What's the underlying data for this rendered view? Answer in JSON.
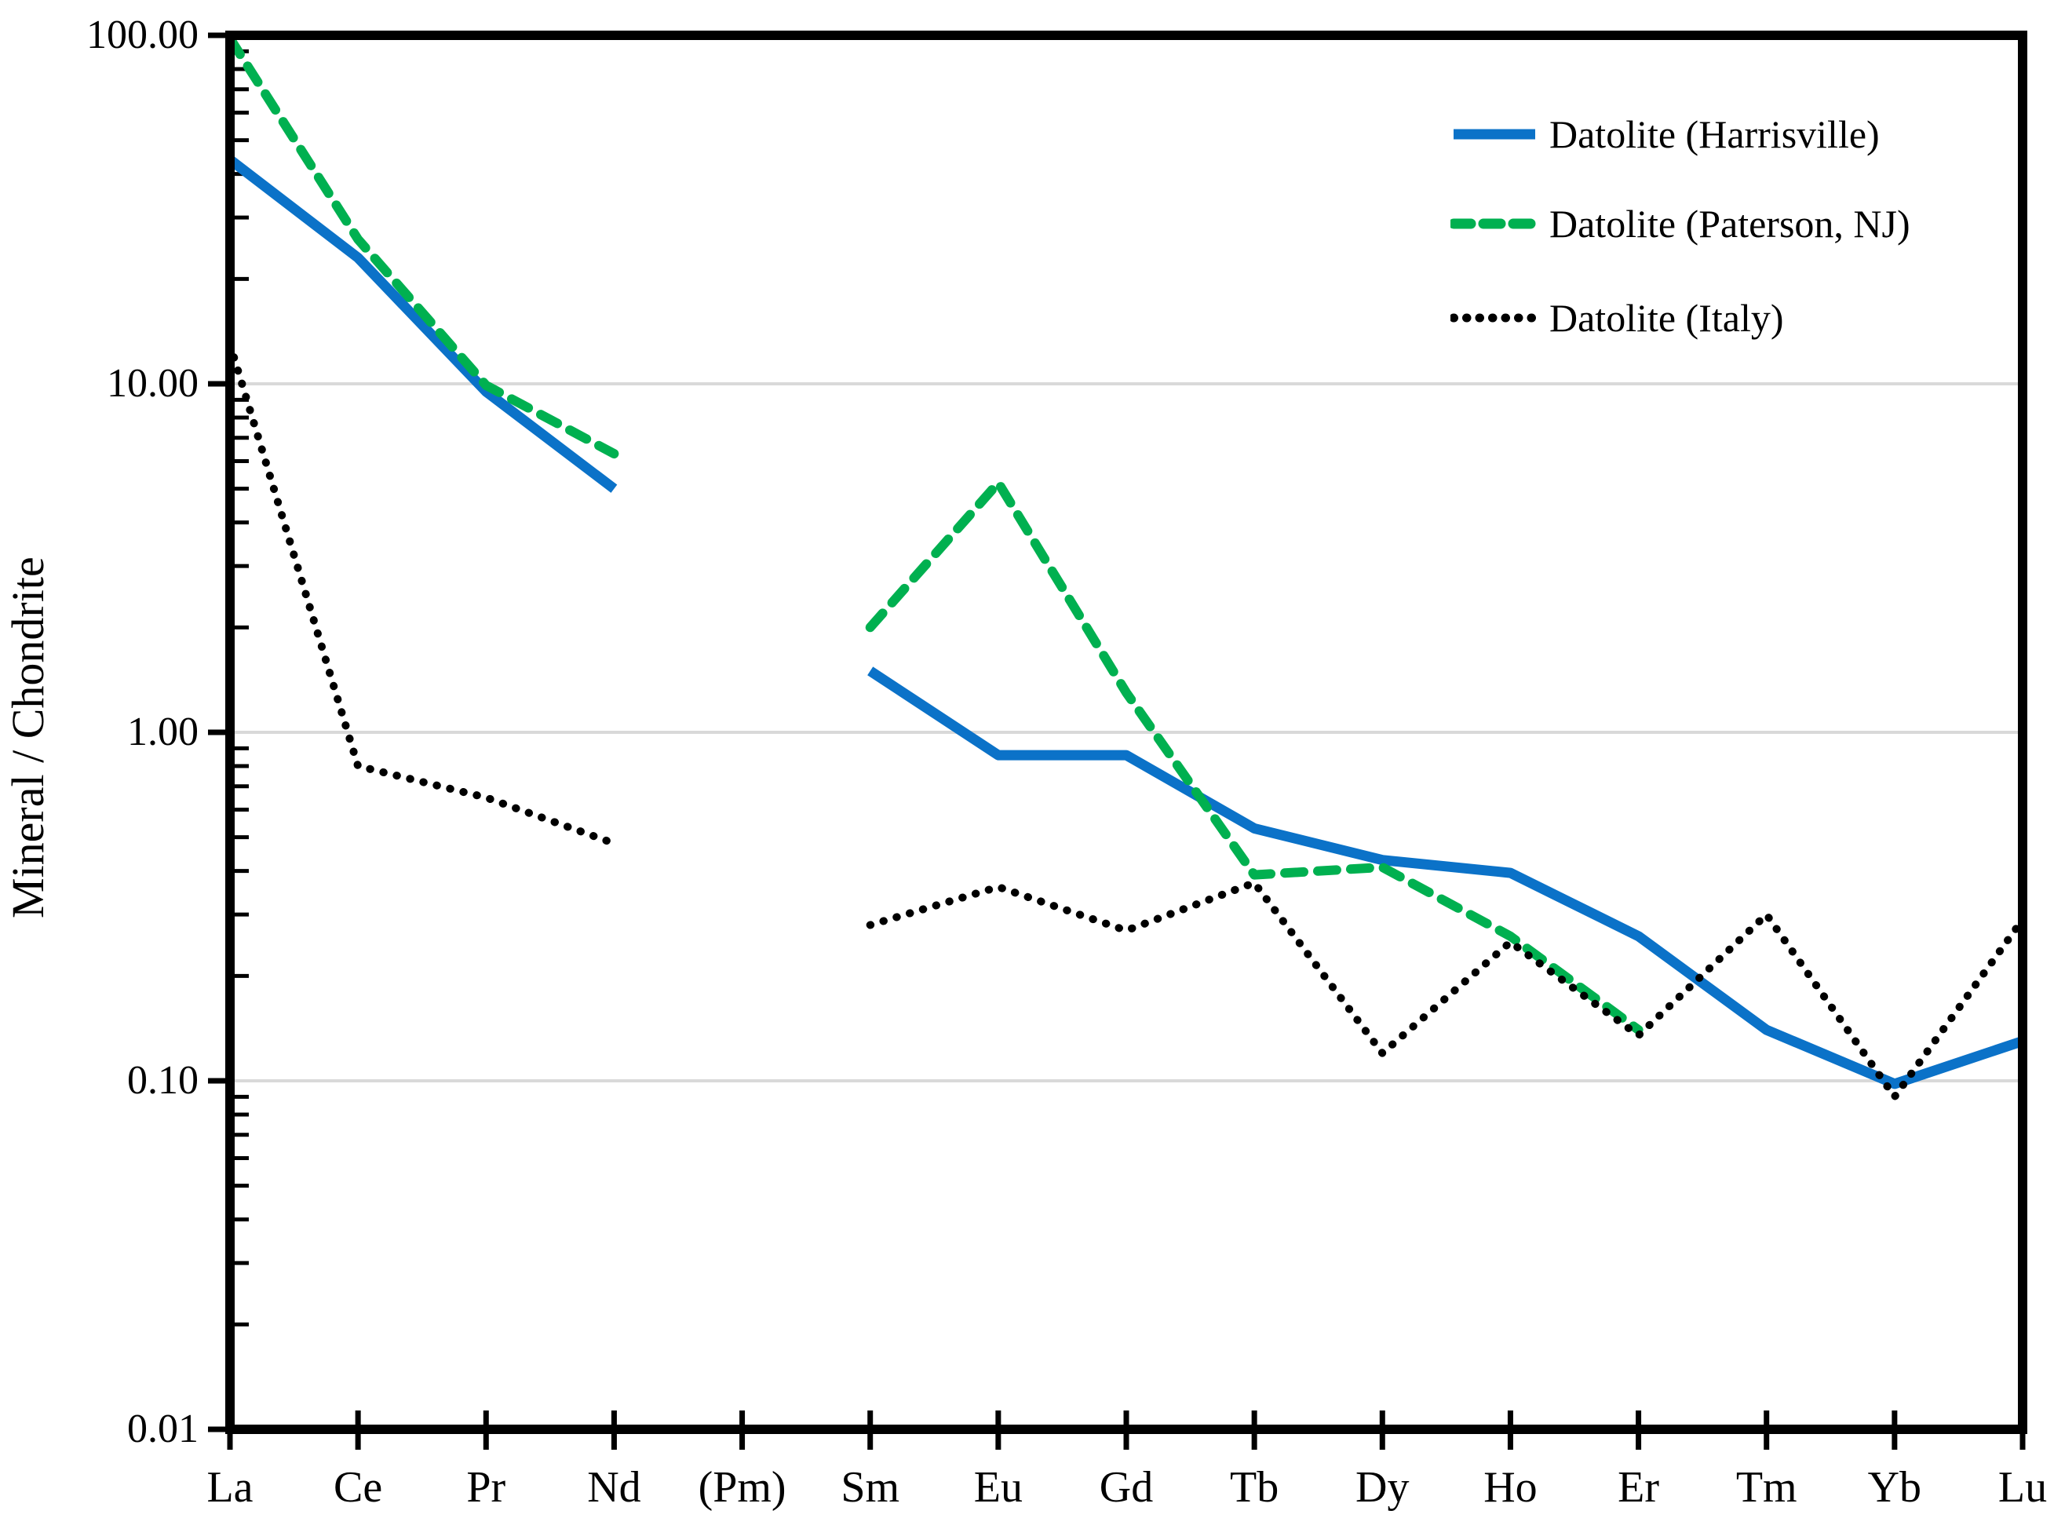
{
  "chart_data": {
    "type": "line",
    "title": "",
    "xlabel": "",
    "ylabel": "Mineral / Chondrite",
    "y_scale": "log",
    "ylim": [
      0.01,
      100
    ],
    "grid": "horizontal-major",
    "grid_color": "#D9D9D9",
    "axis_color": "#000000",
    "legend_position": "top-right-inside",
    "y_ticks": [
      {
        "value": 100,
        "label": "100.00"
      },
      {
        "value": 10,
        "label": "10.00"
      },
      {
        "value": 1,
        "label": "1.00"
      },
      {
        "value": 0.1,
        "label": "0.10"
      },
      {
        "value": 0.01,
        "label": "0.01"
      }
    ],
    "gridlines_at": [
      10,
      1,
      0.1
    ],
    "categories": [
      "La",
      "Ce",
      "Pr",
      "Nd",
      "(Pm)",
      "Sm",
      "Eu",
      "Gd",
      "Tb",
      "Dy",
      "Ho",
      "Er",
      "Tm",
      "Yb",
      "Lu"
    ],
    "series": [
      {
        "name": "Datolite (Harrisville)",
        "color": "#0B72C8",
        "style": "solid",
        "values": [
          44,
          23,
          9.5,
          5.0,
          null,
          1.5,
          0.86,
          0.86,
          0.53,
          0.43,
          0.395,
          0.26,
          0.14,
          0.098,
          0.13
        ]
      },
      {
        "name": "Datolite (Paterson, NJ)",
        "color": "#00B050",
        "style": "dashed",
        "values": [
          98,
          26,
          9.9,
          6.3,
          null,
          2.0,
          5.2,
          1.3,
          0.39,
          0.41,
          0.26,
          0.14,
          null,
          null,
          null
        ]
      },
      {
        "name": "Datolite (Italy)",
        "color": "#000000",
        "style": "dotted",
        "values": [
          13,
          0.8,
          0.65,
          0.48,
          null,
          0.28,
          0.36,
          0.27,
          0.37,
          0.12,
          0.25,
          0.135,
          0.3,
          0.09,
          0.29
        ]
      }
    ]
  }
}
